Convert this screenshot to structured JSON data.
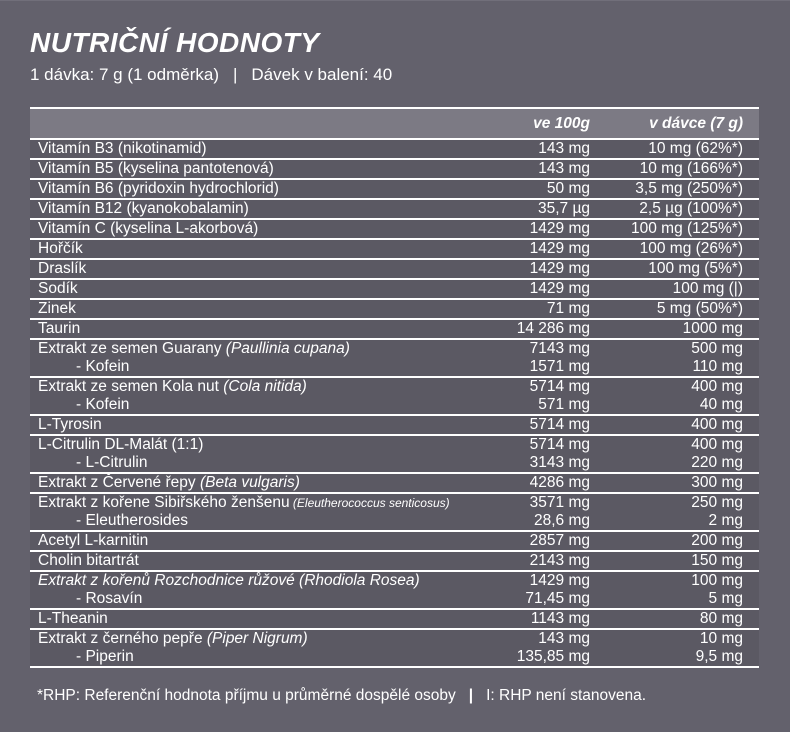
{
  "header": {
    "title": "NUTRIČNÍ HODNOTY",
    "serving_info": "1 dávka: 7 g (1 odměrka)",
    "separator": "|",
    "servings_per_pack": "Dávek v balení: 40"
  },
  "table": {
    "columns": [
      "ve 100g",
      "v dávce (7 g)"
    ],
    "groups": [
      {
        "rows": [
          {
            "label": "Vitamín B3 (nikotinamid)",
            "per_100g": "143 mg",
            "per_dose": "10 mg (62%*)"
          }
        ]
      },
      {
        "rows": [
          {
            "label": "Vitamín B5 (kyselina pantotenová)",
            "per_100g": "143 mg",
            "per_dose": "10 mg (166%*)"
          }
        ]
      },
      {
        "rows": [
          {
            "label": "Vitamín B6 (pyridoxin hydrochlorid)",
            "per_100g": "50 mg",
            "per_dose": "3,5 mg (250%*)"
          }
        ]
      },
      {
        "rows": [
          {
            "label": "Vitamín B12 (kyanokobalamin)",
            "per_100g": "35,7 µg",
            "per_dose": "2,5 µg (100%*)"
          }
        ]
      },
      {
        "rows": [
          {
            "label": "Vitamín C (kyselina L-akorbová)",
            "per_100g": "1429 mg",
            "per_dose": "100 mg (125%*)"
          }
        ]
      },
      {
        "rows": [
          {
            "label": "Hořčík",
            "per_100g": "1429 mg",
            "per_dose": "100 mg (26%*)"
          }
        ]
      },
      {
        "rows": [
          {
            "label": "Draslík",
            "per_100g": "1429 mg",
            "per_dose": "100 mg (5%*)"
          }
        ]
      },
      {
        "rows": [
          {
            "label": "Sodík",
            "per_100g": "1429 mg",
            "per_dose": "100 mg (|)"
          }
        ]
      },
      {
        "rows": [
          {
            "label": "Zinek",
            "per_100g": "71 mg",
            "per_dose": "5 mg (50%*)"
          }
        ]
      },
      {
        "rows": [
          {
            "label": "Taurin",
            "per_100g": "14 286 mg",
            "per_dose": "1000 mg"
          }
        ]
      },
      {
        "rows": [
          {
            "label": "Extrakt ze semen Guarany",
            "latin": "(Paullinia cupana)",
            "per_100g": "7143 mg",
            "per_dose": "500 mg"
          },
          {
            "label": "- Kofein",
            "indent": true,
            "per_100g": "1571 mg",
            "per_dose": "110 mg"
          }
        ]
      },
      {
        "rows": [
          {
            "label": "Extrakt ze semen Kola nut",
            "latin": "(Cola nitida)",
            "per_100g": "5714 mg",
            "per_dose": "400 mg"
          },
          {
            "label": "- Kofein",
            "indent": true,
            "per_100g": "571 mg",
            "per_dose": "40 mg"
          }
        ]
      },
      {
        "rows": [
          {
            "label": "L-Tyrosin",
            "per_100g": "5714 mg",
            "per_dose": "400 mg"
          }
        ]
      },
      {
        "rows": [
          {
            "label": "L-Citrulin DL-Malát (1:1)",
            "per_100g": "5714 mg",
            "per_dose": "400 mg"
          },
          {
            "label": "- L-Citrulin",
            "indent": true,
            "per_100g": "3143 mg",
            "per_dose": "220 mg"
          }
        ]
      },
      {
        "rows": [
          {
            "label": "Extrakt z Červené řepy",
            "latin": "(Beta vulgaris)",
            "per_100g": "4286 mg",
            "per_dose": "300 mg"
          }
        ]
      },
      {
        "rows": [
          {
            "label": "Extrakt z kořene Sibiřského ženšenu",
            "latin": "(Eleutherococcus senticosus)",
            "latin_small": true,
            "per_100g": "3571 mg",
            "per_dose": "250 mg"
          },
          {
            "label": "- Eleutherosides",
            "indent": true,
            "per_100g": "28,6 mg",
            "per_dose": "2 mg"
          }
        ]
      },
      {
        "rows": [
          {
            "label": "Acetyl L-karnitin",
            "per_100g": "2857 mg",
            "per_dose": "200 mg"
          }
        ]
      },
      {
        "rows": [
          {
            "label": "Cholin bitartrát",
            "per_100g": "2143 mg",
            "per_dose": "150 mg"
          }
        ]
      },
      {
        "rows": [
          {
            "label": "Extrakt z kořenů Rozchodnice růžové (Rhodiola Rosea)",
            "italic": true,
            "per_100g": "1429 mg",
            "per_dose": "100 mg"
          },
          {
            "label": "- Rosavín",
            "indent": true,
            "per_100g": "71,45 mg",
            "per_dose": "5 mg"
          }
        ]
      },
      {
        "rows": [
          {
            "label": "L-Theanin",
            "per_100g": "1143 mg",
            "per_dose": "80 mg"
          }
        ]
      },
      {
        "rows": [
          {
            "label": "Extrakt z černého pepře",
            "latin": "(Piper Nigrum)",
            "per_100g": "143 mg",
            "per_dose": "10 mg"
          },
          {
            "label": "- Piperin",
            "indent": true,
            "per_100g": "135,85 mg",
            "per_dose": "9,5 mg"
          }
        ]
      }
    ]
  },
  "footnote": {
    "rhp_note": "*RHP: Referenční hodnota příjmu u průměrné dospělé osoby",
    "divider": "|",
    "not_set_note": "I: RHP není stanovena."
  },
  "colors": {
    "page_background": "#63616c",
    "row_background": "#5b5963",
    "table_header_background": "#7c7a84",
    "line_color": "#ffffff",
    "text_color": "#ffffff",
    "accent_pink": "#e23a6e"
  }
}
